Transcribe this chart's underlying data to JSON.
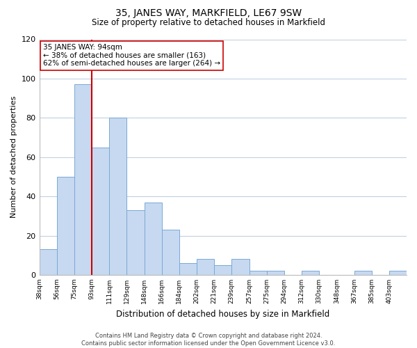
{
  "title": "35, JANES WAY, MARKFIELD, LE67 9SW",
  "subtitle": "Size of property relative to detached houses in Markfield",
  "xlabel": "Distribution of detached houses by size in Markfield",
  "ylabel": "Number of detached properties",
  "bar_values": [
    13,
    50,
    97,
    65,
    80,
    33,
    37,
    23,
    6,
    8,
    5,
    8,
    2,
    2,
    0,
    2,
    0,
    0,
    2,
    0,
    2
  ],
  "x_labels": [
    "38sqm",
    "56sqm",
    "75sqm",
    "93sqm",
    "111sqm",
    "129sqm",
    "148sqm",
    "166sqm",
    "184sqm",
    "202sqm",
    "221sqm",
    "239sqm",
    "257sqm",
    "275sqm",
    "294sqm",
    "312sqm",
    "330sqm",
    "348sqm",
    "367sqm",
    "385sqm",
    "403sqm"
  ],
  "bar_color": "#c6d9f1",
  "bar_edge_color": "#7ba7d4",
  "grid_color": "#c0d0e0",
  "property_line_color": "#cc0000",
  "annotation_line1": "35 JANES WAY: 94sqm",
  "annotation_line2": "← 38% of detached houses are smaller (163)",
  "annotation_line3": "62% of semi-detached houses are larger (264) →",
  "annotation_box_color": "#ffffff",
  "annotation_box_edge": "#cc0000",
  "ylim": [
    0,
    120
  ],
  "yticks": [
    0,
    20,
    40,
    60,
    80,
    100,
    120
  ],
  "footer_line1": "Contains HM Land Registry data © Crown copyright and database right 2024.",
  "footer_line2": "Contains public sector information licensed under the Open Government Licence v3.0.",
  "background_color": "#ffffff",
  "figsize": [
    6.0,
    5.0
  ],
  "dpi": 100
}
